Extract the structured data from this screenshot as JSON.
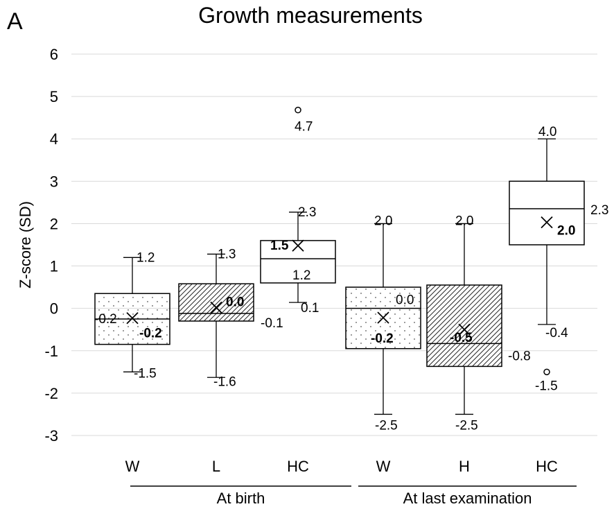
{
  "panel_label": "A",
  "chart_data": {
    "type": "box",
    "title": "Growth measurements",
    "xlabel": "",
    "ylabel": "Z-score (SD)",
    "ylim": [
      -3,
      6
    ],
    "y_ticks": [
      "-3",
      "-2",
      "-1",
      "0",
      "1",
      "2",
      "3",
      "4",
      "5",
      "6"
    ],
    "grid": "horizontal",
    "groups": [
      {
        "label": "At birth",
        "categories": [
          "W",
          "L",
          "HC"
        ]
      },
      {
        "label": "At last examination",
        "categories": [
          "W",
          "H",
          "HC"
        ]
      }
    ],
    "boxes": [
      {
        "category": "W",
        "group": "At birth",
        "fill": "dots",
        "min": -1.5,
        "q1": -0.85,
        "median": -0.25,
        "q3": 0.35,
        "max": 1.2,
        "mean": -0.23,
        "outliers": [],
        "labels": {
          "max": "1.2",
          "median": "-0.2",
          "mean": "-0.2",
          "min": "-1.5"
        }
      },
      {
        "category": "L",
        "group": "At birth",
        "fill": "diagonal",
        "min": -1.63,
        "q1": -0.3,
        "median": -0.12,
        "q3": 0.58,
        "max": 1.28,
        "mean": 0.02,
        "outliers": [],
        "labels": {
          "max": "1.3",
          "mean": "0.0",
          "median": "-0.1",
          "min": "-1.6"
        }
      },
      {
        "category": "HC",
        "group": "At birth",
        "fill": "none",
        "min": 0.14,
        "q1": 0.6,
        "median": 1.17,
        "q3": 1.6,
        "max": 2.27,
        "mean": 1.48,
        "outliers": [
          4.68
        ],
        "labels": {
          "outlier": "4.7",
          "max": "2.3",
          "mean": "1.5",
          "median": "1.2",
          "min": "0.1"
        }
      },
      {
        "category": "W",
        "group": "At last examination",
        "fill": "dots",
        "min": -2.5,
        "q1": -0.95,
        "median": 0.0,
        "q3": 0.5,
        "max": 2.0,
        "mean": -0.22,
        "outliers": [],
        "labels": {
          "max": "2.0",
          "median": "0.0",
          "mean": "-0.2",
          "min": "-2.5"
        }
      },
      {
        "category": "H",
        "group": "At last examination",
        "fill": "diagonal",
        "min": -2.5,
        "q1": -1.37,
        "median": -0.83,
        "q3": 0.55,
        "max": 2.0,
        "mean": -0.5,
        "outliers": [],
        "labels": {
          "max": "2.0",
          "mean": "-0.5",
          "median": "-0.8",
          "min": "-2.5"
        }
      },
      {
        "category": "HC",
        "group": "At last examination",
        "fill": "none",
        "min": -0.38,
        "q1": 1.5,
        "median": 2.35,
        "q3": 3.0,
        "max": 4.0,
        "mean": 2.03,
        "outliers": [
          -1.5
        ],
        "labels": {
          "max": "4.0",
          "median": "2.3",
          "mean": "2.0",
          "min": "-0.4",
          "outlier": "-1.5"
        }
      }
    ]
  }
}
